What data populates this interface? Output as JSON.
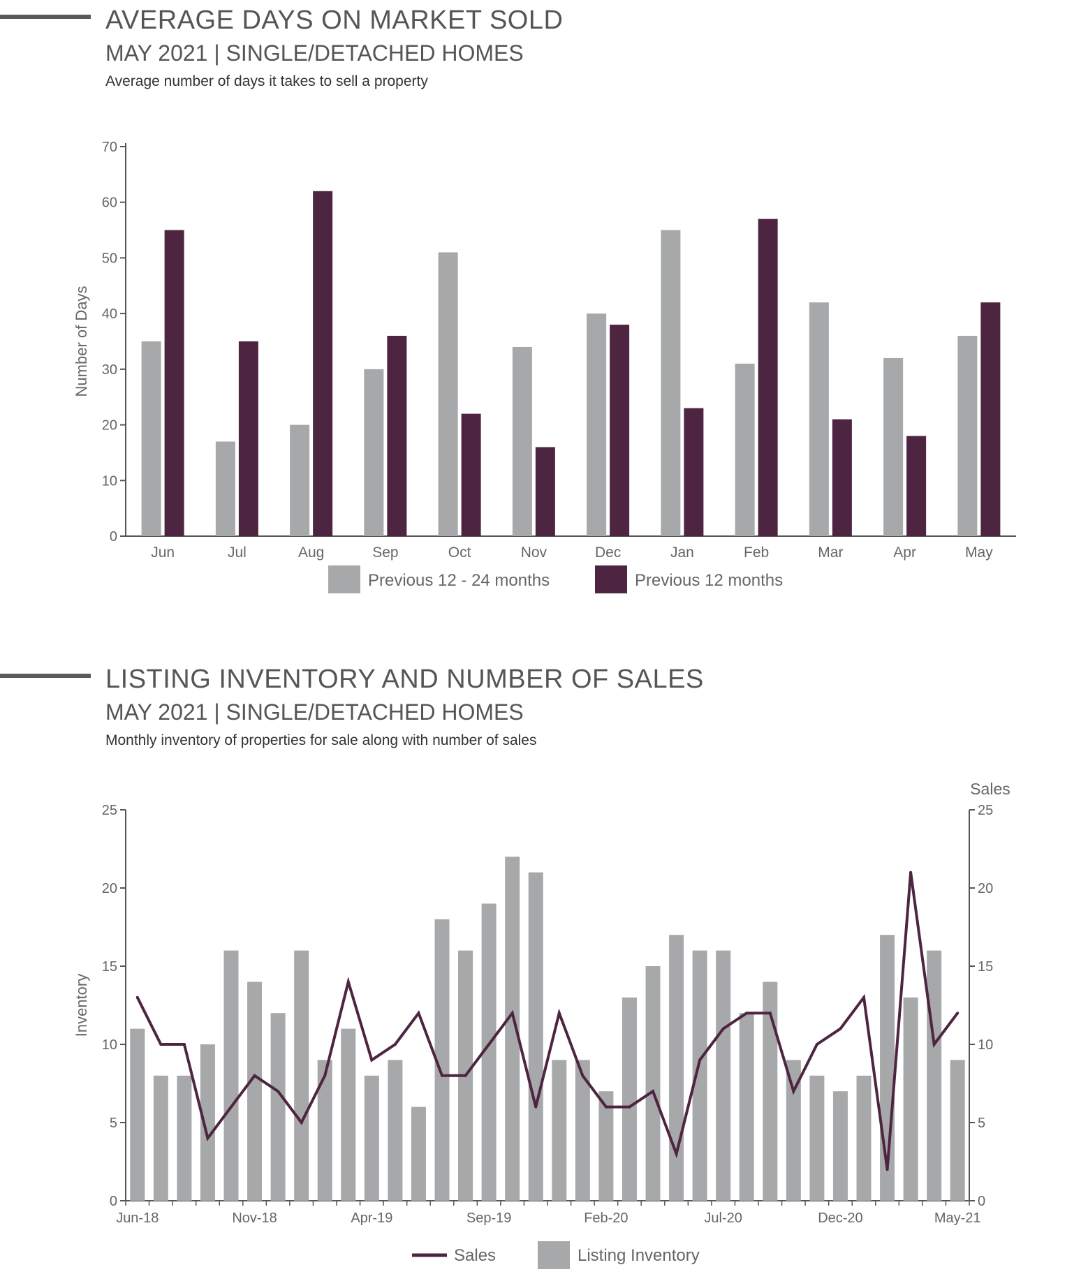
{
  "section1": {
    "title": "AVERAGE DAYS ON MARKET SOLD",
    "subtitle": "MAY 2021 | SINGLE/DETACHED HOMES",
    "description": "Average number of days it takes to sell a property"
  },
  "section2": {
    "title": "LISTING INVENTORY AND NUMBER OF SALES",
    "subtitle": "MAY 2021 | SINGLE/DETACHED HOMES",
    "description": "Monthly inventory of properties for sale along with number of sales"
  },
  "colors": {
    "gray": "#a7a8aa",
    "purple": "#4e2541",
    "axis": "#555555",
    "text": "#666666"
  },
  "chart_data": [
    {
      "type": "bar",
      "title": "AVERAGE DAYS ON MARKET SOLD",
      "ylabel": "Number of Days",
      "xlabel": "",
      "ylim": [
        0,
        70
      ],
      "yticks": [
        0,
        10,
        20,
        30,
        40,
        50,
        60,
        70
      ],
      "categories": [
        "Jun",
        "Jul",
        "Aug",
        "Sep",
        "Oct",
        "Nov",
        "Dec",
        "Jan",
        "Feb",
        "Mar",
        "Apr",
        "May"
      ],
      "series": [
        {
          "name": "Previous 12 - 24 months",
          "values": [
            35,
            17,
            20,
            30,
            51,
            34,
            40,
            55,
            31,
            42,
            32,
            36
          ]
        },
        {
          "name": "Previous 12 months",
          "values": [
            55,
            35,
            62,
            36,
            22,
            16,
            38,
            23,
            57,
            21,
            18,
            42
          ]
        }
      ],
      "legend": "bottom"
    },
    {
      "type": "bar+line",
      "title": "LISTING INVENTORY AND NUMBER OF SALES",
      "ylabel": "Inventory",
      "y2label": "Sales",
      "ylim": [
        0,
        25
      ],
      "y2lim": [
        0,
        25
      ],
      "yticks": [
        0,
        5,
        10,
        15,
        20,
        25
      ],
      "months": 36,
      "xtick_labels": [
        {
          "index": 0,
          "label": "Jun-18"
        },
        {
          "index": 5,
          "label": "Nov-18"
        },
        {
          "index": 10,
          "label": "Apr-19"
        },
        {
          "index": 15,
          "label": "Sep-19"
        },
        {
          "index": 20,
          "label": "Feb-20"
        },
        {
          "index": 25,
          "label": "Jul-20"
        },
        {
          "index": 30,
          "label": "Dec-20"
        },
        {
          "index": 35,
          "label": "May-21"
        }
      ],
      "series": [
        {
          "name": "Listing Inventory",
          "kind": "bar",
          "values": [
            11,
            8,
            8,
            10,
            16,
            14,
            12,
            16,
            9,
            11,
            8,
            9,
            6,
            18,
            16,
            19,
            22,
            21,
            9,
            9,
            7,
            13,
            15,
            17,
            16,
            16,
            12,
            14,
            9,
            8,
            7,
            8,
            17,
            13,
            16,
            9
          ]
        },
        {
          "name": "Sales",
          "kind": "line",
          "values": [
            13,
            10,
            10,
            4,
            6,
            8,
            7,
            5,
            8,
            14,
            9,
            10,
            12,
            8,
            8,
            10,
            12,
            6,
            12,
            8,
            6,
            6,
            7,
            3,
            9,
            11,
            12,
            12,
            7,
            10,
            11,
            13,
            2,
            21,
            10,
            12
          ]
        }
      ],
      "legend": "bottom"
    }
  ]
}
